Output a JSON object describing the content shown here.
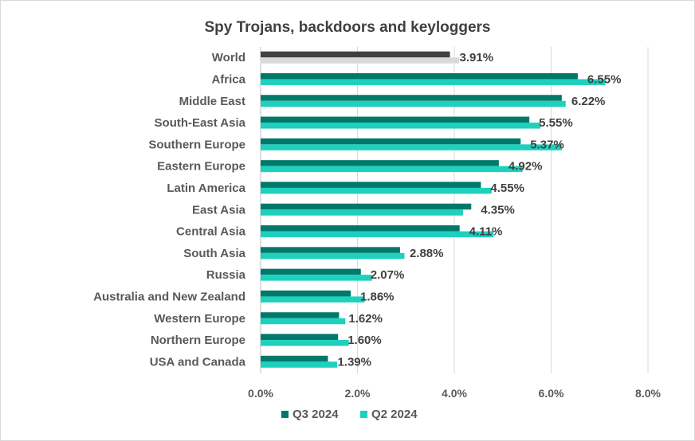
{
  "chart_data": {
    "type": "bar",
    "orientation": "horizontal",
    "title": "Spy Trojans, backdoors and keyloggers",
    "categories": [
      "World",
      "Africa",
      "Middle East",
      "South-East Asia",
      "Southern Europe",
      "Eastern Europe",
      "Latin America",
      "East Asia",
      "Central Asia",
      "South Asia",
      "Russia",
      "Australia and New Zealand",
      "Western Europe",
      "Northern Europe",
      "USA and Canada"
    ],
    "series": [
      {
        "name": "Q3 2024",
        "color": "#00796b",
        "highlight_color": "#404040",
        "values": [
          3.91,
          6.55,
          6.22,
          5.55,
          5.37,
          4.92,
          4.55,
          4.35,
          4.11,
          2.88,
          2.07,
          1.86,
          1.62,
          1.6,
          1.39
        ]
      },
      {
        "name": "Q2 2024",
        "color": "#1dd1bd",
        "highlight_color": "#d9d9d9",
        "values": [
          4.1,
          7.12,
          6.3,
          5.78,
          6.22,
          5.41,
          4.77,
          4.18,
          4.81,
          2.97,
          2.3,
          2.15,
          1.75,
          1.82,
          1.58
        ]
      }
    ],
    "data_labels": [
      "3.91%",
      "6.55%",
      "6.22%",
      "5.55%",
      "5.37%",
      "4.92%",
      "4.55%",
      "4.35%",
      "4.11%",
      "2.88%",
      "2.07%",
      "1.86%",
      "1.62%",
      "1.60%",
      "1.39%"
    ],
    "xlim": [
      0,
      8
    ],
    "xticks": [
      "0.0%",
      "2.0%",
      "4.0%",
      "6.0%",
      "8.0%"
    ],
    "grid": "vertical",
    "legend_position": "bottom"
  }
}
